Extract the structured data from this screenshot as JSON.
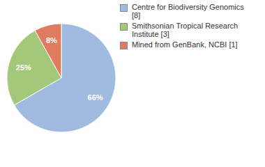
{
  "chart_data": {
    "type": "pie",
    "categories": [
      "Centre for Biodiversity Genomics [8]",
      "Smithsonian Tropical Research Institute [3]",
      "Mined from GenBank, NCBI [1]"
    ],
    "values": [
      66,
      25,
      8
    ],
    "value_labels": [
      "66%",
      "25%",
      "8%"
    ],
    "colors": [
      "#9fbbe0",
      "#a4c87a",
      "#e07b5f"
    ],
    "data_labels": true,
    "legend": "right"
  }
}
